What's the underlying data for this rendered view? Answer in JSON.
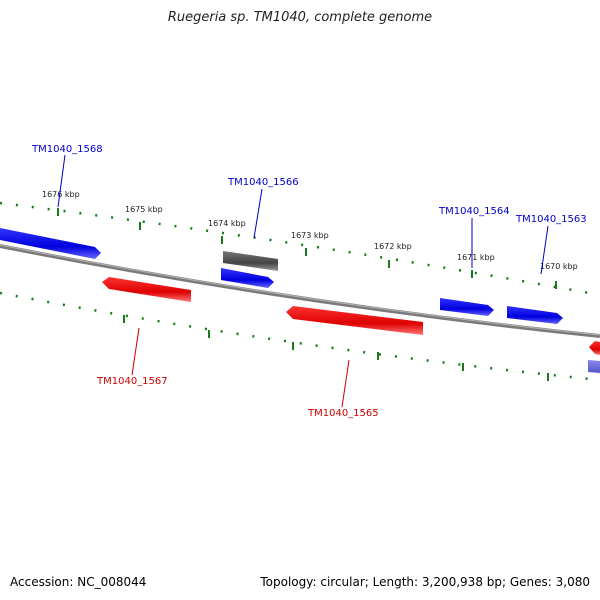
{
  "header": {
    "title": "Ruegeria sp. TM1040, complete genome"
  },
  "footer": {
    "accession": "Accession: NC_008044",
    "topology": "Topology: circular; Length: 3,200,938 bp; Genes: 3,080"
  },
  "colors": {
    "plus_strand": "#0000ee",
    "minus_strand": "#ee0000",
    "other_feature": "#555555",
    "tick": "#1a7a1a",
    "backbone": "#808080"
  },
  "ticks": {
    "outer_labels": [
      "1676 kbp",
      "1675 kbp",
      "1674 kbp",
      "1673 kbp",
      "1672 kbp",
      "1671 kbp",
      "1670 kbp"
    ]
  },
  "genes": {
    "labels": {
      "g1568": "TM1040_1568",
      "g1566": "TM1040_1566",
      "g1564": "TM1040_1564",
      "g1563": "TM1040_1563",
      "g1567": "TM1040_1567",
      "g1565": "TM1040_1565"
    }
  }
}
